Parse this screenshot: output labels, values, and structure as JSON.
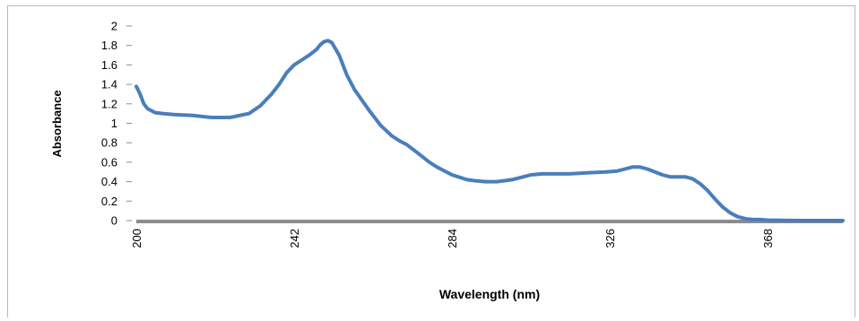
{
  "chart_data": {
    "type": "line",
    "title": "",
    "xlabel": "Wavelength (nm)",
    "ylabel": "Absorbance",
    "xlim": [
      200,
      388
    ],
    "ylim": [
      0,
      2
    ],
    "x_ticks": [
      "200",
      "242",
      "284",
      "326",
      "368"
    ],
    "y_ticks": [
      "0",
      "0.2",
      "0.4",
      "0.6",
      "0.8",
      "1",
      "1.2",
      "1.4",
      "1.6",
      "1.8",
      "2"
    ],
    "grid": false,
    "legend": "none",
    "colors": {
      "series": "#4a7ebb",
      "axis": "#8c8c8c"
    },
    "series": [
      {
        "x": [
          200,
          201,
          202,
          203,
          205,
          207,
          210,
          215,
          220,
          225,
          230,
          233,
          236,
          238,
          240,
          242,
          244,
          246,
          248,
          249,
          250,
          251,
          252,
          254,
          256,
          258,
          260,
          262,
          265,
          268,
          270,
          272,
          275,
          278,
          280,
          284,
          288,
          290,
          293,
          296,
          300,
          303,
          305,
          308,
          310,
          315,
          320,
          325,
          328,
          330,
          332,
          334,
          336,
          340,
          342,
          344,
          346,
          348,
          350,
          352,
          354,
          356,
          358,
          360,
          362,
          364,
          366,
          368,
          372,
          376,
          380,
          384,
          388
        ],
        "y": [
          1.38,
          1.3,
          1.2,
          1.15,
          1.11,
          1.1,
          1.09,
          1.08,
          1.06,
          1.06,
          1.1,
          1.18,
          1.3,
          1.4,
          1.52,
          1.6,
          1.65,
          1.7,
          1.76,
          1.81,
          1.84,
          1.85,
          1.83,
          1.7,
          1.5,
          1.35,
          1.24,
          1.13,
          0.98,
          0.87,
          0.82,
          0.78,
          0.69,
          0.6,
          0.55,
          0.47,
          0.42,
          0.41,
          0.4,
          0.4,
          0.42,
          0.45,
          0.47,
          0.48,
          0.48,
          0.48,
          0.49,
          0.5,
          0.51,
          0.53,
          0.55,
          0.55,
          0.53,
          0.47,
          0.45,
          0.45,
          0.45,
          0.43,
          0.38,
          0.31,
          0.22,
          0.14,
          0.08,
          0.04,
          0.02,
          0.01,
          0.01,
          0.005,
          0.002,
          0,
          0,
          0,
          0
        ]
      }
    ]
  }
}
